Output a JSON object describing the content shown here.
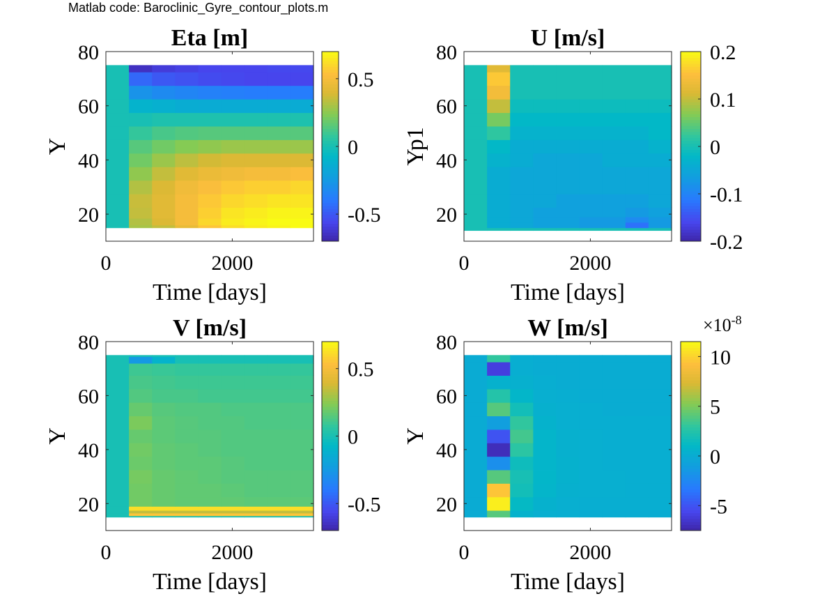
{
  "figure": {
    "note": "Matlab code: Baroclinic_Gyre_contour_plots.m"
  },
  "chart_data": [
    {
      "type": "heatmap",
      "title": "Eta [m]",
      "xlabel": "Time [days]",
      "ylabel": "Y",
      "xlim": [
        0,
        3285
      ],
      "ylim": [
        10,
        80
      ],
      "xticks": [
        0,
        2000
      ],
      "xtick_labels": [
        "0",
        "2000"
      ],
      "yticks": [
        20,
        40,
        60,
        80
      ],
      "ytick_labels": [
        "20",
        "40",
        "60",
        "80"
      ],
      "y_extent": [
        15,
        75
      ],
      "time_bins": [
        0,
        365,
        730,
        1095,
        1460,
        1825,
        2190,
        2555,
        2920,
        3285
      ],
      "y_nodes": [
        15,
        17,
        20,
        25,
        30,
        35,
        40,
        45,
        50,
        55,
        60,
        65,
        70,
        75
      ],
      "values": [
        [
          0,
          0.3,
          0.35,
          0.45,
          0.55,
          0.62,
          0.66,
          0.68,
          0.7
        ],
        [
          0,
          0.32,
          0.4,
          0.5,
          0.6,
          0.66,
          0.68,
          0.7,
          0.7
        ],
        [
          0,
          0.35,
          0.42,
          0.5,
          0.58,
          0.64,
          0.66,
          0.68,
          0.68
        ],
        [
          0,
          0.36,
          0.42,
          0.5,
          0.56,
          0.6,
          0.62,
          0.64,
          0.64
        ],
        [
          0,
          0.32,
          0.4,
          0.48,
          0.52,
          0.56,
          0.58,
          0.58,
          0.6
        ],
        [
          0,
          0.26,
          0.35,
          0.42,
          0.46,
          0.48,
          0.5,
          0.5,
          0.52
        ],
        [
          0,
          0.2,
          0.28,
          0.34,
          0.38,
          0.4,
          0.4,
          0.4,
          0.4
        ],
        [
          0,
          0.15,
          0.2,
          0.24,
          0.26,
          0.28,
          0.28,
          0.28,
          0.28
        ],
        [
          0,
          0.08,
          0.12,
          0.14,
          0.15,
          0.15,
          0.15,
          0.15,
          0.15
        ],
        [
          0,
          0.0,
          0.02,
          0.02,
          0.02,
          0.02,
          0.02,
          0.02,
          0.02
        ],
        [
          0,
          -0.1,
          -0.12,
          -0.14,
          -0.15,
          -0.15,
          -0.15,
          -0.15,
          -0.15
        ],
        [
          0,
          -0.28,
          -0.32,
          -0.34,
          -0.36,
          -0.37,
          -0.38,
          -0.38,
          -0.38
        ],
        [
          0,
          -0.45,
          -0.5,
          -0.52,
          -0.54,
          -0.55,
          -0.56,
          -0.56,
          -0.56
        ],
        [
          0,
          -0.65,
          -0.6,
          -0.58,
          -0.56,
          -0.56,
          -0.56,
          -0.55,
          -0.55
        ]
      ],
      "colorbar": {
        "range": [
          -0.7,
          0.7
        ],
        "ticks": [
          -0.5,
          0,
          0.5
        ],
        "tick_labels": [
          "-0.5",
          "0",
          "0.5"
        ]
      }
    },
    {
      "type": "heatmap",
      "title": "U [m/s]",
      "xlabel": "Time [days]",
      "ylabel": "Yp1",
      "xlim": [
        0,
        3285
      ],
      "ylim": [
        10,
        80
      ],
      "xticks": [
        0,
        2000
      ],
      "xtick_labels": [
        "0",
        "2000"
      ],
      "yticks": [
        20,
        40,
        60,
        80
      ],
      "ytick_labels": [
        "20",
        "40",
        "60",
        "80"
      ],
      "y_extent": [
        14,
        75
      ],
      "time_bins": [
        0,
        365,
        730,
        1095,
        1460,
        1825,
        2190,
        2555,
        2920,
        3285
      ],
      "y_nodes": [
        14,
        16,
        18,
        20,
        25,
        30,
        35,
        40,
        45,
        50,
        55,
        60,
        65,
        70,
        75
      ],
      "values": [
        [
          0,
          0.0,
          0.0,
          0.0,
          0.0,
          0.0,
          0.0,
          0.0,
          0.0
        ],
        [
          0,
          -0.04,
          -0.05,
          -0.06,
          -0.06,
          -0.07,
          -0.07,
          -0.12,
          -0.07
        ],
        [
          0,
          -0.04,
          -0.05,
          -0.06,
          -0.06,
          -0.07,
          -0.07,
          -0.09,
          -0.07
        ],
        [
          0,
          -0.04,
          -0.05,
          -0.06,
          -0.06,
          -0.06,
          -0.06,
          -0.07,
          -0.06
        ],
        [
          0,
          -0.04,
          -0.05,
          -0.05,
          -0.06,
          -0.06,
          -0.06,
          -0.06,
          -0.05
        ],
        [
          0,
          -0.04,
          -0.05,
          -0.05,
          -0.05,
          -0.05,
          -0.05,
          -0.05,
          -0.05
        ],
        [
          0,
          -0.04,
          -0.05,
          -0.05,
          -0.05,
          -0.05,
          -0.05,
          -0.05,
          -0.05
        ],
        [
          0,
          -0.03,
          -0.04,
          -0.05,
          -0.05,
          -0.05,
          -0.04,
          -0.04,
          -0.04
        ],
        [
          0,
          -0.02,
          -0.04,
          -0.04,
          -0.04,
          -0.04,
          -0.04,
          -0.04,
          -0.03
        ],
        [
          0,
          0.02,
          -0.03,
          -0.03,
          -0.03,
          -0.03,
          -0.03,
          -0.03,
          -0.02
        ],
        [
          0,
          0.06,
          -0.02,
          -0.02,
          -0.02,
          -0.02,
          -0.02,
          -0.02,
          -0.02
        ],
        [
          0,
          0.1,
          -0.01,
          -0.01,
          -0.01,
          -0.01,
          -0.01,
          -0.01,
          -0.01
        ],
        [
          0,
          0.14,
          0.0,
          0.0,
          0.0,
          0.0,
          0.0,
          0.0,
          0.0
        ],
        [
          0,
          0.16,
          0.0,
          0.0,
          0.0,
          0.0,
          0.0,
          0.0,
          0.0
        ],
        [
          0,
          0.12,
          0.0,
          0.0,
          0.0,
          0.0,
          0.0,
          0.0,
          0.0
        ]
      ],
      "colorbar": {
        "range": [
          -0.2,
          0.2
        ],
        "ticks": [
          -0.2,
          -0.1,
          0,
          0.1,
          0.2
        ],
        "tick_labels": [
          "-0.2",
          "-0.1",
          "0",
          "0.1",
          "0.2"
        ]
      }
    },
    {
      "type": "heatmap",
      "title": "V [m/s]",
      "xlabel": "Time [days]",
      "ylabel": "Y",
      "xlim": [
        0,
        3285
      ],
      "ylim": [
        10,
        80
      ],
      "xticks": [
        0,
        2000
      ],
      "xtick_labels": [
        "0",
        "2000"
      ],
      "yticks": [
        20,
        40,
        60,
        80
      ],
      "ytick_labels": [
        "20",
        "40",
        "60",
        "80"
      ],
      "y_extent": [
        15,
        75
      ],
      "time_bins": [
        0,
        365,
        730,
        1095,
        1460,
        1825,
        2190,
        2555,
        2920,
        3285
      ],
      "y_nodes": [
        15,
        16,
        17,
        18,
        20,
        25,
        30,
        35,
        40,
        45,
        50,
        55,
        60,
        65,
        70,
        74,
        75
      ],
      "values": [
        [
          0,
          0.0,
          0.0,
          0.0,
          0.0,
          0.0,
          0.0,
          0.0,
          0.0
        ],
        [
          0,
          0.55,
          0.55,
          0.55,
          0.55,
          0.55,
          0.55,
          0.55,
          0.55
        ],
        [
          0,
          0.35,
          0.35,
          0.35,
          0.35,
          0.35,
          0.35,
          0.35,
          0.35
        ],
        [
          0,
          0.62,
          0.62,
          0.62,
          0.62,
          0.62,
          0.62,
          0.62,
          0.62
        ],
        [
          0,
          0.2,
          0.18,
          0.17,
          0.17,
          0.17,
          0.16,
          0.16,
          0.16
        ],
        [
          0,
          0.2,
          0.18,
          0.17,
          0.17,
          0.16,
          0.15,
          0.15,
          0.15
        ],
        [
          0,
          0.21,
          0.18,
          0.17,
          0.16,
          0.15,
          0.15,
          0.15,
          0.15
        ],
        [
          0,
          0.19,
          0.17,
          0.16,
          0.16,
          0.15,
          0.14,
          0.14,
          0.14
        ],
        [
          0,
          0.2,
          0.17,
          0.16,
          0.15,
          0.14,
          0.14,
          0.14,
          0.14
        ],
        [
          0,
          0.18,
          0.16,
          0.15,
          0.15,
          0.14,
          0.14,
          0.14,
          0.14
        ],
        [
          0,
          0.22,
          0.16,
          0.15,
          0.14,
          0.14,
          0.13,
          0.13,
          0.13
        ],
        [
          0,
          0.18,
          0.15,
          0.14,
          0.14,
          0.13,
          0.13,
          0.13,
          0.13
        ],
        [
          0,
          0.14,
          0.12,
          0.12,
          0.11,
          0.11,
          0.11,
          0.11,
          0.11
        ],
        [
          0,
          0.12,
          0.11,
          0.1,
          0.1,
          0.1,
          0.1,
          0.1,
          0.1
        ],
        [
          0,
          0.1,
          0.09,
          0.08,
          0.08,
          0.08,
          0.08,
          0.08,
          0.08
        ],
        [
          0,
          -0.25,
          -0.1,
          0.0,
          0.0,
          0.0,
          0.0,
          0.0,
          0.0
        ],
        [
          0,
          0.0,
          0.0,
          0.0,
          0.0,
          0.0,
          0.0,
          0.0,
          0.0
        ]
      ],
      "colorbar": {
        "range": [
          -0.7,
          0.7
        ],
        "ticks": [
          -0.5,
          0,
          0.5
        ],
        "tick_labels": [
          "-0.5",
          "0",
          "0.5"
        ]
      }
    },
    {
      "type": "heatmap",
      "title": "W [m/s]",
      "xlabel": "Time [days]",
      "ylabel": "Y",
      "xlim": [
        0,
        3285
      ],
      "ylim": [
        10,
        80
      ],
      "xticks": [
        0,
        2000
      ],
      "xtick_labels": [
        "0",
        "2000"
      ],
      "yticks": [
        20,
        40,
        60,
        80
      ],
      "ytick_labels": [
        "20",
        "40",
        "60",
        "80"
      ],
      "y_extent": [
        15,
        75
      ],
      "time_bins": [
        0,
        365,
        730,
        1095,
        1460,
        1825,
        2190,
        2555,
        2920,
        3285
      ],
      "y_nodes": [
        15,
        20,
        25,
        30,
        35,
        40,
        45,
        50,
        55,
        60,
        65,
        70,
        75
      ],
      "values": [
        [
          0,
          4.0,
          0.6,
          0.3,
          0.2,
          0.1,
          0.1,
          0.1,
          0.1
        ],
        [
          0,
          11.0,
          1.2,
          0.5,
          0.3,
          0.2,
          0.2,
          0.2,
          0.2
        ],
        [
          0,
          9.5,
          1.8,
          0.8,
          0.4,
          0.3,
          0.3,
          0.2,
          0.2
        ],
        [
          0,
          4.0,
          2.0,
          0.9,
          0.5,
          0.3,
          0.3,
          0.2,
          0.2
        ],
        [
          0,
          -2.0,
          1.6,
          0.8,
          0.5,
          0.3,
          0.2,
          0.2,
          0.2
        ],
        [
          0,
          -7.0,
          2.8,
          0.8,
          0.4,
          0.3,
          0.2,
          0.2,
          0.2
        ],
        [
          0,
          -5.0,
          3.5,
          0.8,
          0.4,
          0.3,
          0.2,
          0.2,
          0.2
        ],
        [
          0,
          -1.0,
          3.0,
          0.6,
          0.3,
          0.2,
          0.2,
          0.2,
          0.2
        ],
        [
          0,
          4.0,
          1.8,
          0.4,
          0.3,
          0.2,
          0.1,
          0.1,
          0.1
        ],
        [
          0,
          2.5,
          0.9,
          0.3,
          0.2,
          0.1,
          0.1,
          0.1,
          0.1
        ],
        [
          0,
          0.5,
          0.4,
          0.2,
          0.1,
          0.1,
          0.1,
          0.1,
          0.1
        ],
        [
          0,
          -6.0,
          0.2,
          0.1,
          0.1,
          0.1,
          0.1,
          0.1,
          0.1
        ],
        [
          0,
          3.0,
          0.2,
          0.1,
          0.1,
          0.1,
          0.1,
          0.1,
          0.1
        ]
      ],
      "colorbar": {
        "range": [
          -7.5,
          11.5
        ],
        "ticks": [
          -5,
          0,
          5,
          10
        ],
        "tick_labels": [
          "-5",
          "0",
          "5",
          "10"
        ],
        "multiplier": "×10",
        "multiplier_exponent": "-8"
      }
    }
  ]
}
